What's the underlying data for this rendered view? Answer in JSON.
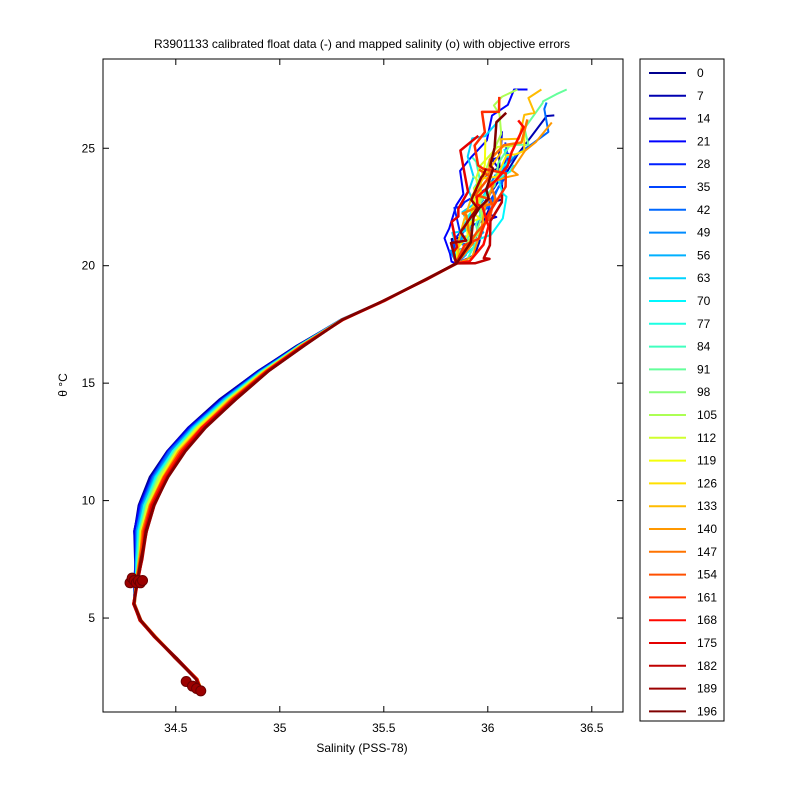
{
  "chart_data": {
    "type": "line",
    "title": "R3901133 calibrated float data (-) and mapped salinity (o) with objective errors",
    "xlabel": "Salinity (PSS-78)",
    "ylabel": "θ °C",
    "xlim": [
      34.15,
      36.65
    ],
    "ylim": [
      1,
      28.8
    ],
    "xticks": [
      34.5,
      35,
      35.5,
      36,
      36.5
    ],
    "xtick_labels": [
      "34.5",
      "35",
      "35.5",
      "36",
      "36.5"
    ],
    "yticks": [
      5,
      10,
      15,
      20,
      25
    ],
    "ytick_labels": [
      "5",
      "10",
      "15",
      "20",
      "25"
    ],
    "grid": false,
    "legend_position": "outside-right",
    "legend": [
      "0",
      "7",
      "14",
      "21",
      "28",
      "35",
      "42",
      "49",
      "56",
      "63",
      "70",
      "77",
      "84",
      "91",
      "98",
      "105",
      "112",
      "119",
      "126",
      "133",
      "140",
      "147",
      "154",
      "161",
      "168",
      "175",
      "182",
      "189",
      "196"
    ],
    "legend_colors": [
      "#00008f",
      "#0000b0",
      "#0000d6",
      "#0000ff",
      "#0020ff",
      "#0044ff",
      "#0068ff",
      "#008cff",
      "#00b0ff",
      "#00d4ff",
      "#00f8ff",
      "#1cffe3",
      "#40ffbf",
      "#64ff9b",
      "#88ff77",
      "#acff53",
      "#d0ff2f",
      "#f4ff0b",
      "#ffe000",
      "#ffbc00",
      "#ff9800",
      "#ff7400",
      "#ff5000",
      "#ff2c00",
      "#ff0800",
      "#e40000",
      "#c00000",
      "#9c0000",
      "#800000"
    ],
    "mean_profile": {
      "x": [
        34.63,
        34.6,
        34.5,
        34.4,
        34.33,
        34.3,
        34.31,
        34.32,
        34.33,
        34.36,
        34.42,
        34.5,
        34.6,
        34.75,
        34.92,
        35.1,
        35.3,
        35.5,
        35.7,
        35.85
      ],
      "y": [
        1.8,
        2.4,
        3.3,
        4.2,
        4.9,
        5.6,
        6.5,
        7.5,
        8.7,
        9.8,
        11.0,
        12.1,
        13.1,
        14.3,
        15.5,
        16.6,
        17.7,
        18.5,
        19.4,
        20.1
      ]
    },
    "mapped_salinity_points": {
      "x": [
        34.28,
        34.29,
        34.3,
        34.31,
        34.32,
        34.33,
        34.34,
        34.55,
        34.58,
        34.6,
        34.62
      ],
      "y": [
        6.5,
        6.7,
        6.6,
        6.5,
        6.6,
        6.5,
        6.6,
        2.3,
        2.1,
        2.0,
        1.9
      ]
    }
  }
}
